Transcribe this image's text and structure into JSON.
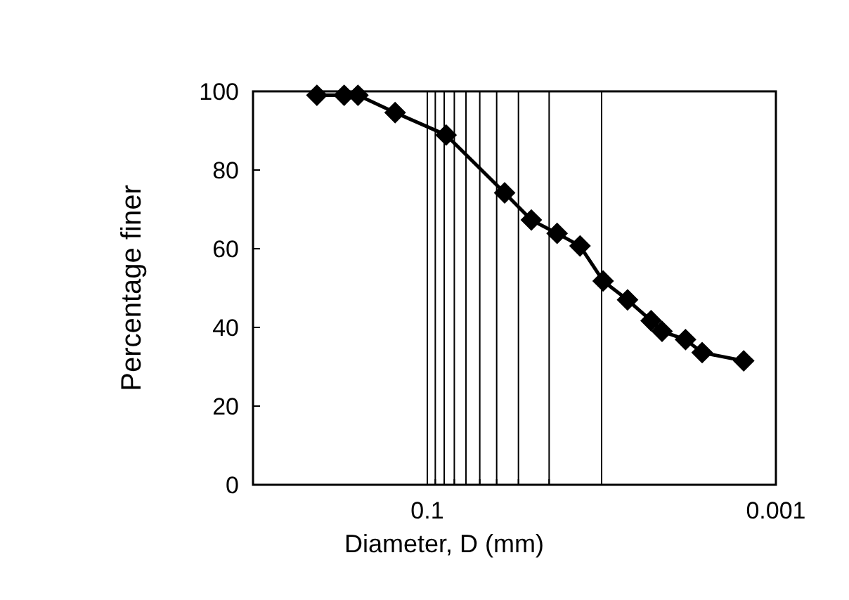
{
  "chart_data": {
    "type": "line",
    "xlabel": "Diameter, D (mm)",
    "ylabel": "Percentage finer",
    "x": [
      0.43,
      0.3,
      0.25,
      0.153,
      0.078,
      0.036,
      0.0253,
      0.018,
      0.0133,
      0.0098,
      0.0071,
      0.0052,
      0.0045,
      0.0033,
      0.00265,
      0.00153
    ],
    "series": [
      {
        "color": "#000000",
        "values": [
          99,
          99,
          99,
          94.6,
          88.9,
          74.2,
          67.3,
          63.9,
          60.7,
          51.8,
          47,
          41.7,
          39,
          36.9,
          33.6,
          31.5
        ]
      }
    ],
    "log": "x",
    "xlim": [
      1,
      0.001
    ],
    "xticks": [
      0.1,
      {
        "value": 0.09,
        "label": null
      },
      {
        "value": 0.08,
        "label": null
      },
      {
        "value": 0.07,
        "label": null
      },
      {
        "value": 0.06,
        "label": null
      },
      {
        "value": 0.05,
        "label": null
      },
      {
        "value": 0.04,
        "label": null
      },
      {
        "value": 0.03,
        "label": null
      },
      {
        "value": 0.02,
        "label": null
      },
      {
        "value": 0.01,
        "label": null
      },
      0.001
    ],
    "ylim": [
      0,
      100
    ],
    "yticks": [
      0,
      20,
      40,
      60,
      80,
      100
    ],
    "grid": "x",
    "marker": "diamond",
    "line_style": "solid"
  }
}
